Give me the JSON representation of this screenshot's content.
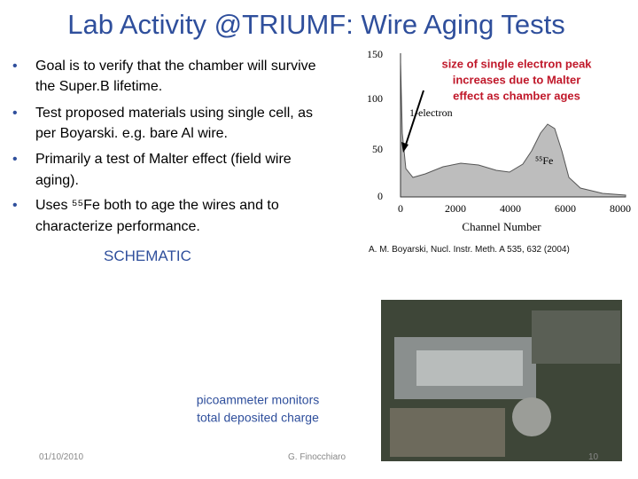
{
  "title": "Lab Activity @TRIUMF: Wire Aging Tests",
  "bullets": [
    [
      "Goal is to verify that the chamber will survive",
      "the Super.B lifetime."
    ],
    [
      "Test proposed materials using single cell, as",
      "per Boyarski. e.g. bare Al wire."
    ],
    [
      "Primarily a test of Malter effect (field wire",
      "aging)."
    ],
    [
      "Uses ⁵⁵Fe both to age the wires and to",
      "characterize performance."
    ]
  ],
  "schematic_label": "SCHEMATIC",
  "figure": {
    "yticks": [
      "150",
      "100",
      "50",
      "0"
    ],
    "xticks": [
      "0",
      "2000",
      "4000",
      "6000",
      "8000"
    ],
    "xlabel": "Channel Number",
    "peak_label": "1-electron",
    "source_label": "⁵⁵Fe",
    "callout": [
      "size of single electron peak",
      "increases due to Malter",
      "effect as chamber ages"
    ]
  },
  "citation": "A. M. Boyarski, Nucl. Instr. Meth. A 535, 632 (2004)",
  "photo_caption": [
    "picoammeter monitors",
    "total deposited charge"
  ],
  "footer": {
    "date": "01/10/2010",
    "author": "G. Finocchiaro",
    "page": "10"
  }
}
